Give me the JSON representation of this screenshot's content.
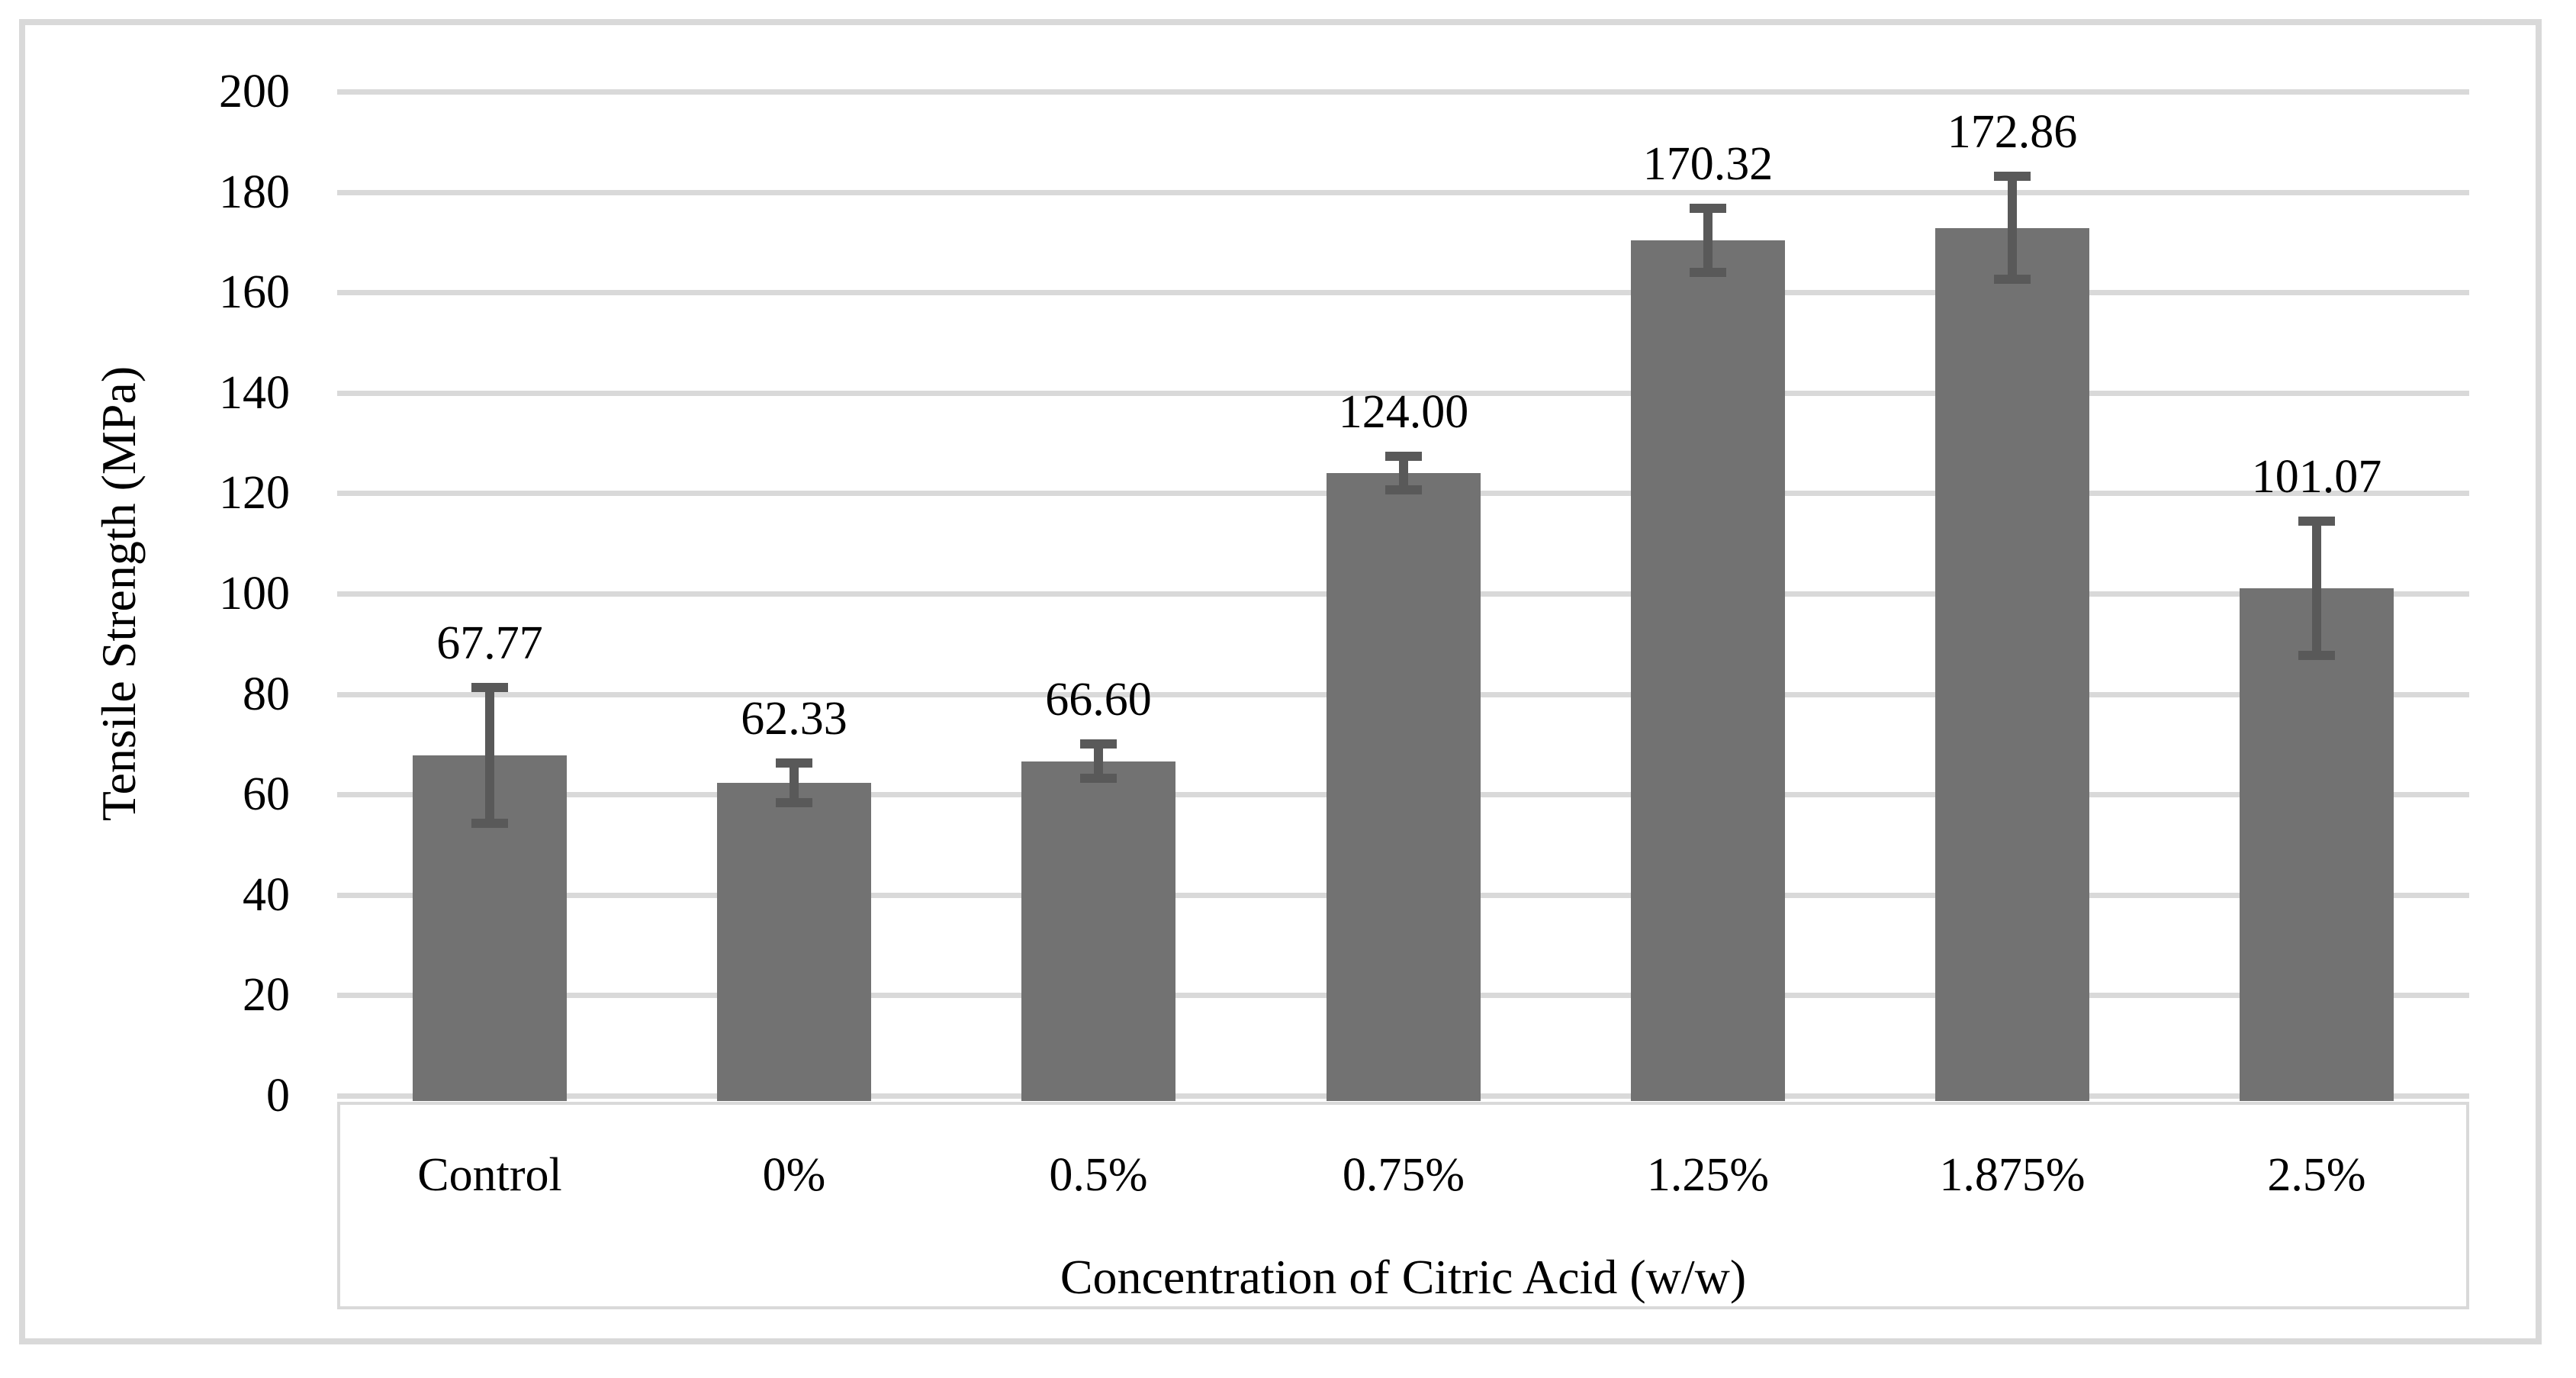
{
  "chart_data": {
    "type": "bar",
    "title": "",
    "xlabel": "Concentration of Citric Acid (w/w)",
    "ylabel": "Tensile Strength (MPa)",
    "categories": [
      "Control",
      "0%",
      "0.5%",
      "0.75%",
      "1.25%",
      "1.875%",
      "2.5%"
    ],
    "series": [
      {
        "name": "Tensile Strength",
        "values": [
          67.77,
          62.33,
          66.6,
          124.0,
          170.32,
          172.86,
          101.07
        ],
        "data_labels": [
          "67.77",
          "62.33",
          "66.60",
          "124.00",
          "170.32",
          "172.86",
          "101.07"
        ],
        "error_bars": [
          13.5,
          4.0,
          3.4,
          3.4,
          6.4,
          10.2,
          13.4
        ]
      }
    ],
    "ylim": [
      0,
      200
    ],
    "y_ticks": [
      0,
      20,
      40,
      60,
      80,
      100,
      120,
      140,
      160,
      180,
      200
    ],
    "y_tick_labels": [
      "0",
      "20",
      "40",
      "60",
      "80",
      "100",
      "120",
      "140",
      "160",
      "180",
      "200"
    ],
    "grid": true,
    "legend": "none",
    "colors": {
      "bar": "#727272",
      "error_bar": "#595959",
      "gridline": "#d9d9d9",
      "frame_border": "#d9d9d9",
      "background": "#ffffff",
      "text": "#000000"
    }
  }
}
